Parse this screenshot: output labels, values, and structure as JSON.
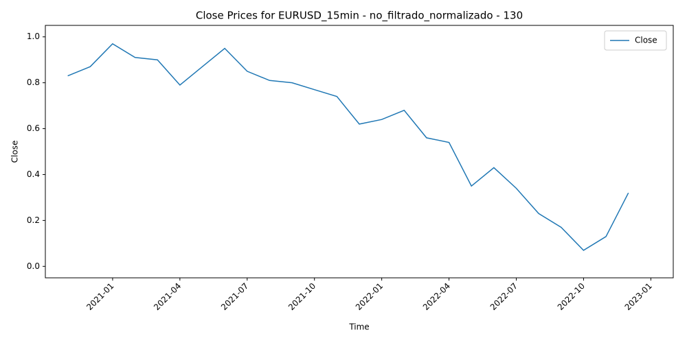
{
  "chart_data": {
    "type": "line",
    "title": "Close Prices for EURUSD_15min - no_filtrado_normalizado - 130",
    "x_label": "Time",
    "y_label": "Close",
    "x": [
      "2020-11",
      "2020-12",
      "2021-01",
      "2021-02",
      "2021-03",
      "2021-04",
      "2021-05",
      "2021-06",
      "2021-07",
      "2021-08",
      "2021-09",
      "2021-10",
      "2021-11",
      "2021-12",
      "2022-01",
      "2022-02",
      "2022-03",
      "2022-04",
      "2022-05",
      "2022-06",
      "2022-07",
      "2022-08",
      "2022-09",
      "2022-10",
      "2022-11",
      "2022-12"
    ],
    "series": [
      {
        "name": "Close",
        "color": "#1f77b4",
        "values": [
          0.83,
          0.87,
          0.97,
          0.91,
          0.9,
          0.79,
          0.87,
          0.95,
          0.85,
          0.81,
          0.8,
          0.77,
          0.74,
          0.62,
          0.64,
          0.68,
          0.56,
          0.54,
          0.35,
          0.43,
          0.34,
          0.23,
          0.17,
          0.07,
          0.13,
          0.32
        ]
      }
    ],
    "xlim": [
      "2020-10",
      "2023-02"
    ],
    "xticks": [
      "2021-01",
      "2021-04",
      "2021-07",
      "2021-10",
      "2022-01",
      "2022-04",
      "2022-07",
      "2022-10",
      "2023-01"
    ],
    "ylim": [
      -0.05,
      1.05
    ],
    "yticks": [
      {
        "value": 0,
        "label": "0.0"
      },
      0.2,
      0.4,
      0.6,
      0.8,
      {
        "value": 1,
        "label": "1.0"
      }
    ],
    "legend": "upper right"
  }
}
